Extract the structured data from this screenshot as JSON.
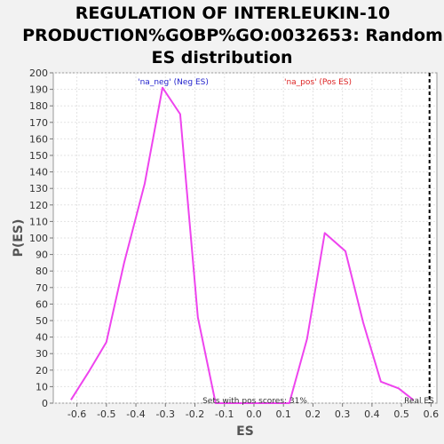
{
  "chart_data": {
    "type": "line",
    "title_lines": [
      "REGULATION OF INTERLEUKIN-10",
      "PRODUCTION%GOBP%GO:0032653: Random",
      "ES distribution"
    ],
    "xlabel": "ES",
    "ylabel": "P(ES)",
    "xlim": [
      -0.68,
      0.62
    ],
    "ylim": [
      0,
      200
    ],
    "xticks": [
      "-0.6",
      "-0.5",
      "-0.4",
      "-0.3",
      "-0.2",
      "-0.1",
      "0.0",
      "0.1",
      "0.2",
      "0.3",
      "0.4",
      "0.5",
      "0.6"
    ],
    "yticks": [
      "0",
      "10",
      "20",
      "30",
      "40",
      "50",
      "60",
      "70",
      "80",
      "90",
      "100",
      "110",
      "120",
      "130",
      "140",
      "150",
      "160",
      "170",
      "180",
      "190",
      "200"
    ],
    "grid": true,
    "series": [
      {
        "name": "random ES distribution",
        "color": "#ee44ee",
        "x": [
          -0.62,
          -0.56,
          -0.5,
          -0.44,
          -0.37,
          -0.31,
          -0.25,
          -0.19,
          -0.13,
          0.12,
          0.18,
          0.24,
          0.31,
          0.37,
          0.43,
          0.49,
          0.54
        ],
        "y": [
          2,
          19,
          37,
          85,
          133,
          191,
          175,
          52,
          0,
          0,
          39,
          103,
          92,
          49,
          13,
          9,
          2
        ]
      }
    ],
    "real_es": {
      "x": 0.595,
      "label": "Real ES",
      "color": "#000000"
    },
    "annotations": {
      "neg_label": "'na_neg' (Neg ES)",
      "neg_color": "#2222cc",
      "pos_label": "'na_pos' (Pos ES)",
      "pos_color": "#dd2222",
      "pos_scores": "Sets with pos scores: 31%"
    }
  }
}
